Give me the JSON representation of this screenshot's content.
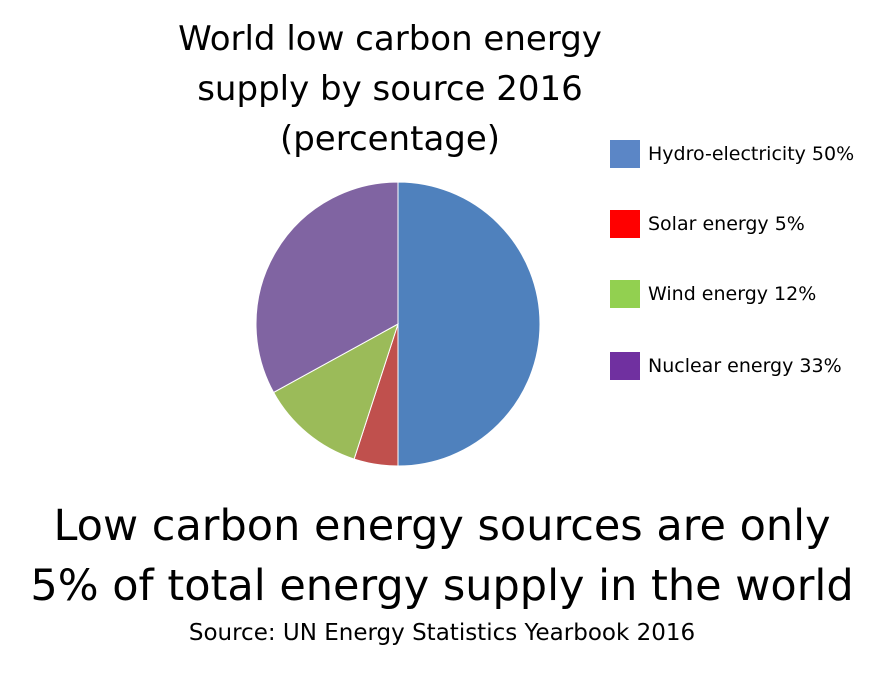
{
  "chart_data": {
    "type": "pie",
    "title": [
      "World low carbon energy",
      "supply by source 2016",
      "(percentage)"
    ],
    "slices": [
      {
        "label": "Hydro-electricity 50%",
        "value": 50,
        "color": "#4F81BD",
        "swatch": "#5B86C6"
      },
      {
        "label": "Solar energy 5%",
        "value": 5,
        "color": "#C0504D",
        "swatch": "#FF0000"
      },
      {
        "label": "Wind energy 12%",
        "value": 12,
        "color": "#9BBB59",
        "swatch": "#92D050"
      },
      {
        "label": "Nuclear energy 33%",
        "value": 33,
        "color": "#8064A2",
        "swatch": "#7030A0"
      }
    ],
    "legend_position": "right"
  },
  "conclusion": [
    "Low carbon energy sources are only",
    "5% of total energy supply in the world"
  ],
  "source": "Source: UN Energy Statistics Yearbook 2016"
}
